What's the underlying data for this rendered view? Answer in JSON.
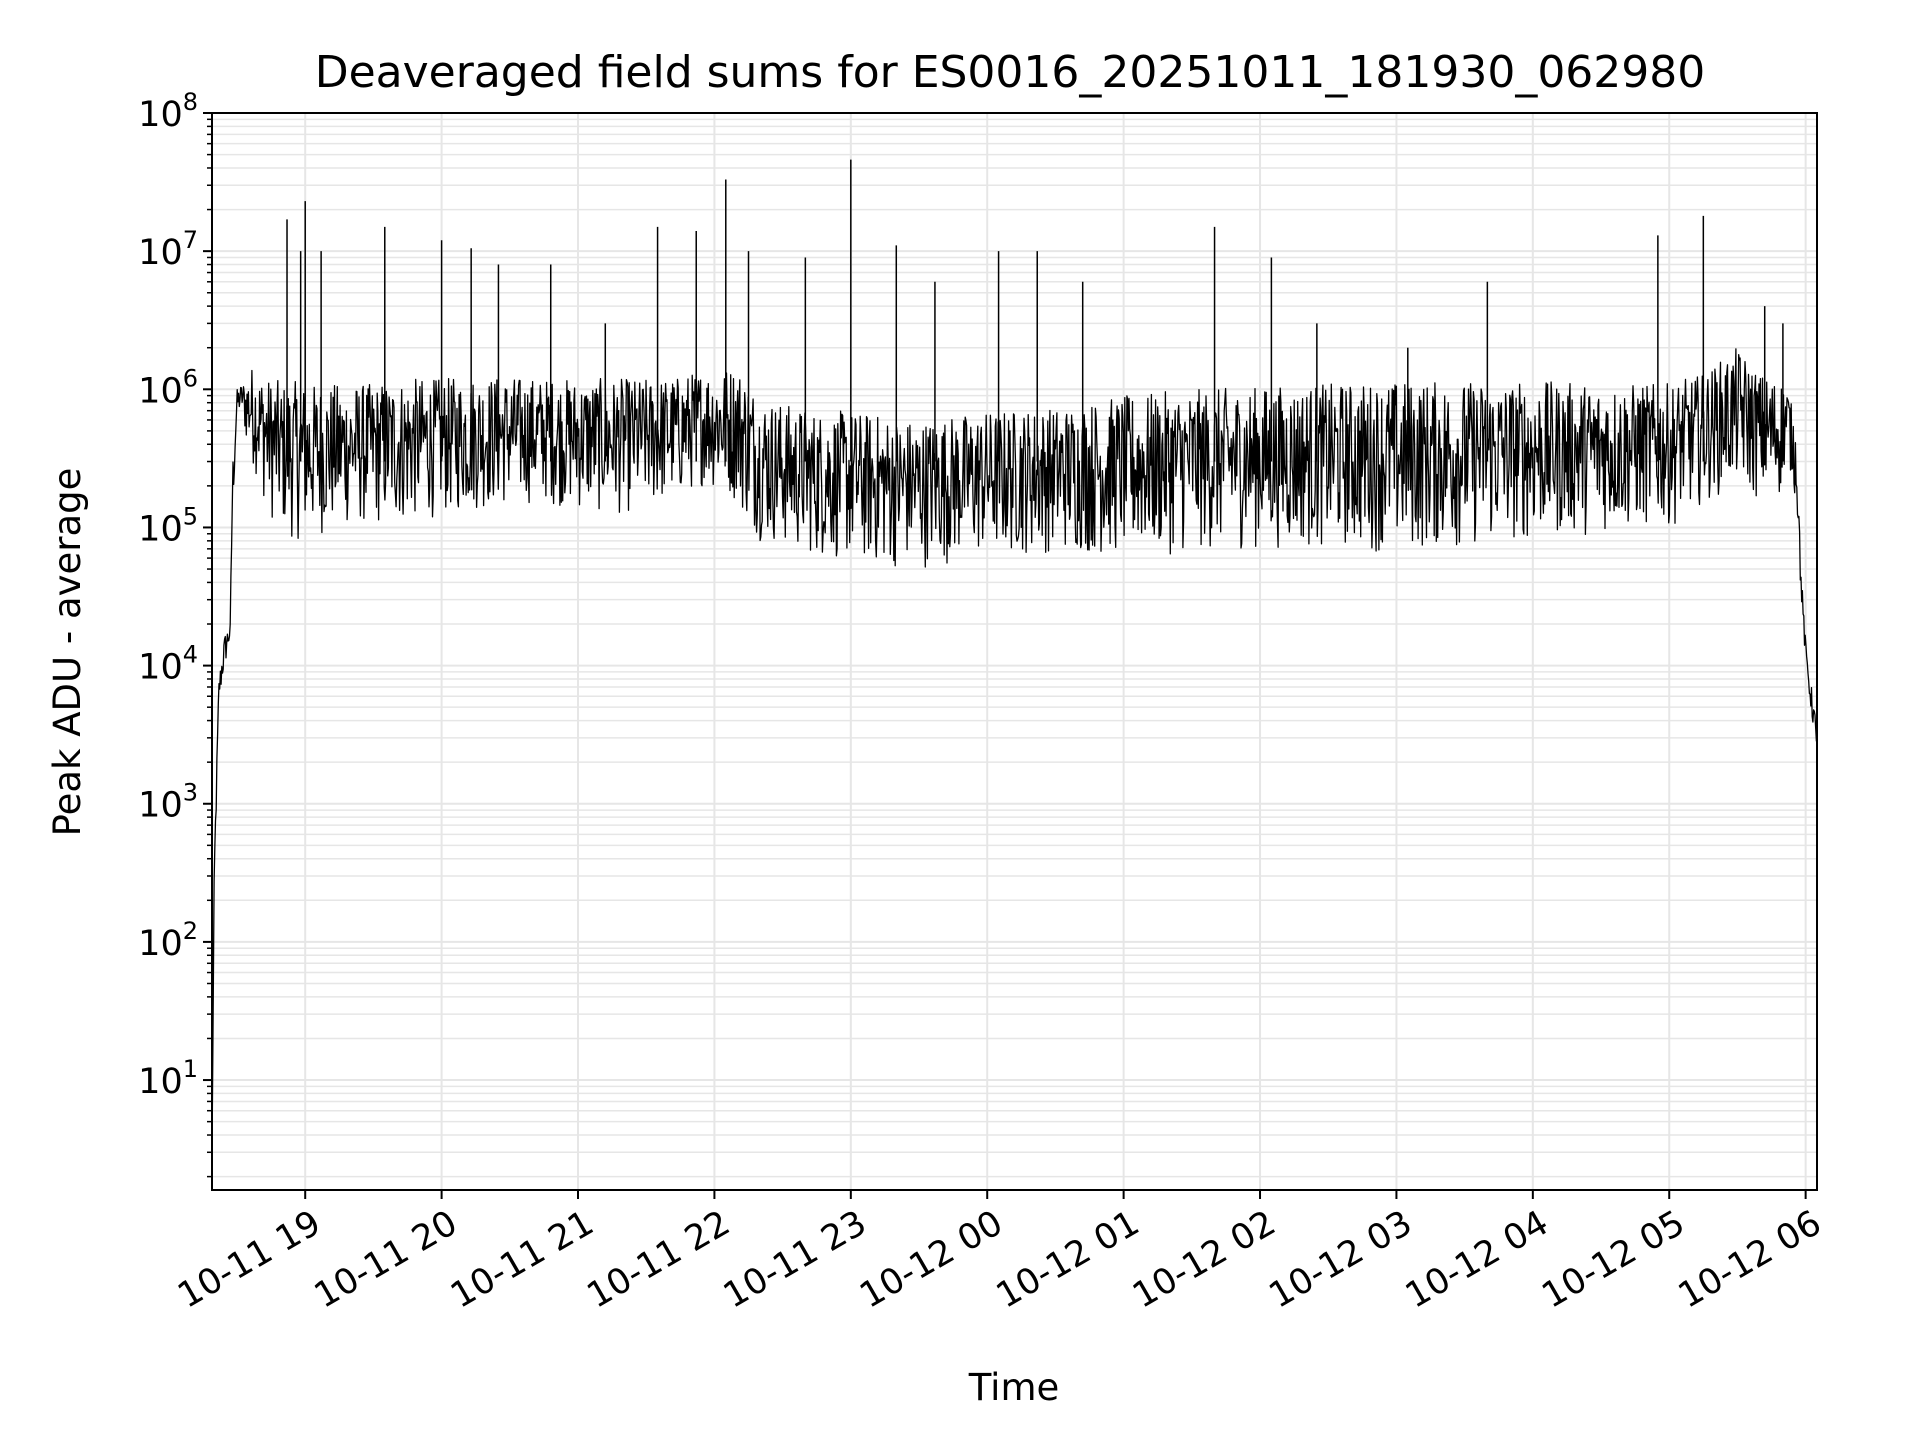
{
  "chart_data": {
    "type": "line",
    "title": "Deaveraged field sums for ES0016_20251011_181930_062980",
    "xlabel": "Time",
    "ylabel": "Peak ADU - average",
    "y_scale": "log",
    "ylim": [
      1.6,
      100000000
    ],
    "xlim": [
      "2025-10-11 18:19",
      "2025-10-12 06:05"
    ],
    "grid": true,
    "line_color": "#000000",
    "grid_color": "#e6e6e6",
    "y_ticks": [
      {
        "value": 10,
        "base": "10",
        "exp": "1"
      },
      {
        "value": 100,
        "base": "10",
        "exp": "2"
      },
      {
        "value": 1000,
        "base": "10",
        "exp": "3"
      },
      {
        "value": 10000,
        "base": "10",
        "exp": "4"
      },
      {
        "value": 100000,
        "base": "10",
        "exp": "5"
      },
      {
        "value": 1000000,
        "base": "10",
        "exp": "6"
      },
      {
        "value": 10000000,
        "base": "10",
        "exp": "7"
      },
      {
        "value": 100000000,
        "base": "10",
        "exp": "8"
      }
    ],
    "x_ticks": [
      {
        "time": "2025-10-11 19:00",
        "label": "10-11 19"
      },
      {
        "time": "2025-10-11 20:00",
        "label": "10-11 20"
      },
      {
        "time": "2025-10-11 21:00",
        "label": "10-11 21"
      },
      {
        "time": "2025-10-11 22:00",
        "label": "10-11 22"
      },
      {
        "time": "2025-10-11 23:00",
        "label": "10-11 23"
      },
      {
        "time": "2025-10-12 00:00",
        "label": "10-12 00"
      },
      {
        "time": "2025-10-12 01:00",
        "label": "10-12 01"
      },
      {
        "time": "2025-10-12 02:00",
        "label": "10-12 02"
      },
      {
        "time": "2025-10-12 03:00",
        "label": "10-12 03"
      },
      {
        "time": "2025-10-12 04:00",
        "label": "10-12 04"
      },
      {
        "time": "2025-10-12 05:00",
        "label": "10-12 05"
      },
      {
        "time": "2025-10-12 06:00",
        "label": "10-12 06"
      }
    ],
    "series": [
      {
        "x": [
          "2025-10-11 18:19",
          "2025-10-11 18:20",
          "2025-10-11 18:22",
          "2025-10-11 18:24",
          "2025-10-11 18:25",
          "2025-10-11 18:27",
          "2025-10-11 18:28",
          "2025-10-11 18:30",
          "2025-10-11 18:32",
          "2025-10-11 18:34",
          "2025-10-11 18:36",
          "2025-10-11 18:38",
          "2025-10-11 18:40",
          "2025-10-11 18:42",
          "2025-10-11 18:44",
          "2025-10-11 18:47",
          "2025-10-11 18:50",
          "2025-10-11 18:52",
          "2025-10-11 18:55",
          "2025-10-11 19:00",
          "2025-10-11 19:10",
          "2025-10-11 19:20",
          "2025-10-11 19:30",
          "2025-10-11 19:40",
          "2025-10-11 19:50",
          "2025-10-11 20:00",
          "2025-10-11 20:15",
          "2025-10-11 20:30",
          "2025-10-11 20:45",
          "2025-10-11 21:00",
          "2025-10-11 21:15",
          "2025-10-11 21:30",
          "2025-10-11 21:45",
          "2025-10-11 21:55",
          "2025-10-11 22:10",
          "2025-10-11 22:15",
          "2025-10-11 22:20",
          "2025-10-11 22:30",
          "2025-10-11 22:45",
          "2025-10-11 23:00",
          "2025-10-11 23:15",
          "2025-10-11 23:30",
          "2025-10-11 23:45",
          "2025-10-12 00:00",
          "2025-10-12 00:30",
          "2025-10-12 01:00",
          "2025-10-12 01:30",
          "2025-10-12 02:00",
          "2025-10-12 02:30",
          "2025-10-12 03:00",
          "2025-10-12 03:30",
          "2025-10-12 04:00",
          "2025-10-12 04:30",
          "2025-10-12 05:00",
          "2025-10-12 05:15",
          "2025-10-12 05:30",
          "2025-10-12 05:40",
          "2025-10-12 05:48",
          "2025-10-12 05:52",
          "2025-10-12 05:56",
          "2025-10-12 05:58",
          "2025-10-12 06:00",
          "2025-10-12 06:02",
          "2025-10-12 06:04",
          "2025-10-12 06:05"
        ],
        "low": [
          3,
          200,
          5000,
          8000,
          10000,
          15000,
          100000,
          600000,
          700000,
          400000,
          300000,
          250000,
          200000,
          150000,
          120000,
          100000,
          90000,
          85000,
          80000,
          80000,
          90000,
          100000,
          100000,
          100000,
          110000,
          120000,
          130000,
          140000,
          150000,
          130000,
          120000,
          130000,
          160000,
          200000,
          150000,
          100000,
          80000,
          70000,
          60000,
          55000,
          50000,
          50000,
          55000,
          60000,
          65000,
          60000,
          65000,
          70000,
          70000,
          65000,
          70000,
          80000,
          90000,
          100000,
          150000,
          200000,
          150000,
          150000,
          300000,
          150000,
          30000,
          10000,
          5000,
          3000,
          2000
        ],
        "high": [
          3,
          400,
          8000,
          15000,
          18000,
          20000,
          300000,
          1000000,
          1100000,
          1200000,
          1500000,
          1400000,
          1300000,
          1300000,
          1200000,
          1200000,
          1100000,
          1150000,
          1150000,
          1100000,
          1100000,
          1100000,
          1100000,
          1200000,
          1200000,
          1200000,
          1250000,
          1250000,
          1200000,
          1200000,
          1200000,
          1200000,
          1250000,
          1400000,
          1500000,
          1200000,
          900000,
          800000,
          700000,
          700000,
          650000,
          600000,
          650000,
          700000,
          750000,
          900000,
          1000000,
          1050000,
          1100000,
          1150000,
          1150000,
          1150000,
          1100000,
          1100000,
          1300000,
          2000000,
          1300000,
          1200000,
          1100000,
          500000,
          50000,
          15000,
          8000,
          5000,
          2500
        ]
      }
    ],
    "spikes": [
      {
        "x": "2025-10-11 18:52",
        "value": 17000000
      },
      {
        "x": "2025-10-11 18:58",
        "value": 10000000
      },
      {
        "x": "2025-10-11 19:00",
        "value": 23000000
      },
      {
        "x": "2025-10-11 19:07",
        "value": 10000000
      },
      {
        "x": "2025-10-11 19:35",
        "value": 15000000
      },
      {
        "x": "2025-10-11 20:00",
        "value": 12000000
      },
      {
        "x": "2025-10-11 20:13",
        "value": 10500000
      },
      {
        "x": "2025-10-11 20:25",
        "value": 8000000
      },
      {
        "x": "2025-10-11 20:48",
        "value": 8000000
      },
      {
        "x": "2025-10-11 21:12",
        "value": 3000000
      },
      {
        "x": "2025-10-11 21:35",
        "value": 15000000
      },
      {
        "x": "2025-10-11 21:52",
        "value": 14000000
      },
      {
        "x": "2025-10-11 22:05",
        "value": 33000000
      },
      {
        "x": "2025-10-11 22:15",
        "value": 10000000
      },
      {
        "x": "2025-10-11 22:40",
        "value": 9000000
      },
      {
        "x": "2025-10-11 23:00",
        "value": 46000000
      },
      {
        "x": "2025-10-11 23:20",
        "value": 11000000
      },
      {
        "x": "2025-10-11 23:37",
        "value": 6000000
      },
      {
        "x": "2025-10-12 00:05",
        "value": 10000000
      },
      {
        "x": "2025-10-12 00:22",
        "value": 10000000
      },
      {
        "x": "2025-10-12 00:42",
        "value": 6000000
      },
      {
        "x": "2025-10-12 01:40",
        "value": 15000000
      },
      {
        "x": "2025-10-12 02:05",
        "value": 9000000
      },
      {
        "x": "2025-10-12 02:25",
        "value": 3000000
      },
      {
        "x": "2025-10-12 03:05",
        "value": 2000000
      },
      {
        "x": "2025-10-12 03:40",
        "value": 6000000
      },
      {
        "x": "2025-10-12 04:55",
        "value": 13000000
      },
      {
        "x": "2025-10-12 05:15",
        "value": 18000000
      },
      {
        "x": "2025-10-12 05:42",
        "value": 4000000
      },
      {
        "x": "2025-10-12 05:50",
        "value": 3000000
      }
    ]
  }
}
